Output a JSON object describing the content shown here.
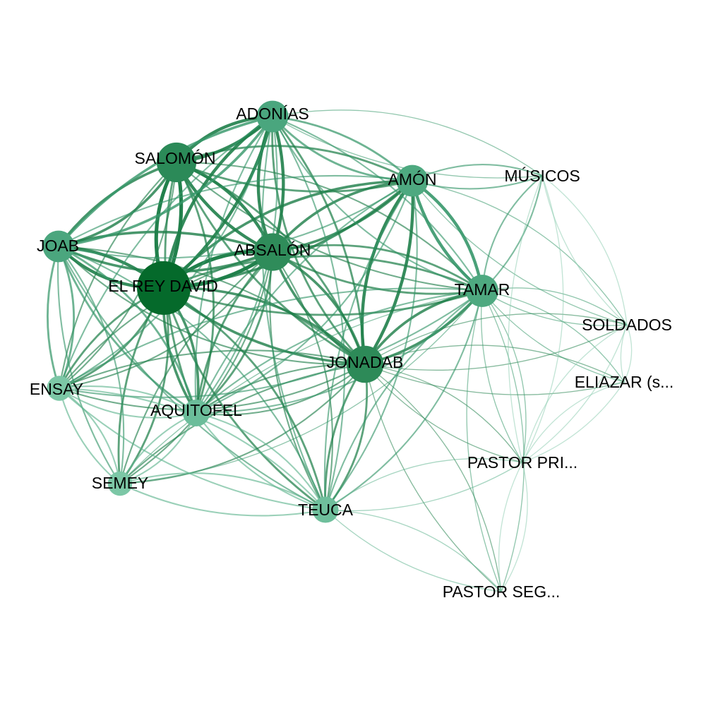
{
  "graph": {
    "nodes": [
      {
        "id": "david",
        "label": "EL REY DAVID",
        "weight": 1.0,
        "color": "#056a2b"
      },
      {
        "id": "salomon",
        "label": "SALOMÓN",
        "weight": 0.62,
        "color": "#2b8a58"
      },
      {
        "id": "absalon",
        "label": "ABSALÓN",
        "weight": 0.56,
        "color": "#2f8c5a"
      },
      {
        "id": "jonadab",
        "label": "JONADAB",
        "weight": 0.55,
        "color": "#2d8a58"
      },
      {
        "id": "adonias",
        "label": "ADONÍAS",
        "weight": 0.4,
        "color": "#4aa67e"
      },
      {
        "id": "amon",
        "label": "AMÓN",
        "weight": 0.4,
        "color": "#4ea980"
      },
      {
        "id": "tamar",
        "label": "TAMAR",
        "weight": 0.42,
        "color": "#4ea980"
      },
      {
        "id": "joab",
        "label": "JOAB",
        "weight": 0.4,
        "color": "#4ba67e"
      },
      {
        "id": "aquitofel",
        "label": "AQUITOFEL",
        "weight": 0.27,
        "color": "#6bbd9a"
      },
      {
        "id": "ensay",
        "label": "ENSAY",
        "weight": 0.22,
        "color": "#7cc7a6"
      },
      {
        "id": "semey",
        "label": "SEMEY",
        "weight": 0.2,
        "color": "#7cc7a6"
      },
      {
        "id": "teuca",
        "label": "TEUCA",
        "weight": 0.25,
        "color": "#6fbf9c"
      },
      {
        "id": "musicos",
        "label": "MÚSICOS",
        "weight": 0.0,
        "color": "#a9dcc5"
      },
      {
        "id": "soldados",
        "label": "SOLDADOS",
        "weight": 0.0,
        "color": "#a9dcc5"
      },
      {
        "id": "eliazar",
        "label": "ELIAZAR (s...",
        "weight": 0.0,
        "color": "#a9dcc5"
      },
      {
        "id": "pastor1",
        "label": "PASTOR PRI...",
        "weight": 0.0,
        "color": "#a9dcc5"
      },
      {
        "id": "pastor2",
        "label": "PASTOR SEG...",
        "weight": 0.0,
        "color": "#a9dcc5"
      }
    ],
    "edges": [
      {
        "source": "david",
        "target": "salomon",
        "weight": 6
      },
      {
        "source": "david",
        "target": "absalon",
        "weight": 6
      },
      {
        "source": "david",
        "target": "joab",
        "weight": 5
      },
      {
        "source": "david",
        "target": "adonias",
        "weight": 5
      },
      {
        "source": "david",
        "target": "jonadab",
        "weight": 4
      },
      {
        "source": "david",
        "target": "aquitofel",
        "weight": 4
      },
      {
        "source": "david",
        "target": "amon",
        "weight": 4
      },
      {
        "source": "david",
        "target": "tamar",
        "weight": 3
      },
      {
        "source": "david",
        "target": "ensay",
        "weight": 3
      },
      {
        "source": "david",
        "target": "semey",
        "weight": 3
      },
      {
        "source": "david",
        "target": "teuca",
        "weight": 3
      },
      {
        "source": "salomon",
        "target": "adonias",
        "weight": 5
      },
      {
        "source": "salomon",
        "target": "absalon",
        "weight": 5
      },
      {
        "source": "salomon",
        "target": "joab",
        "weight": 4
      },
      {
        "source": "salomon",
        "target": "amon",
        "weight": 3
      },
      {
        "source": "salomon",
        "target": "jonadab",
        "weight": 3
      },
      {
        "source": "salomon",
        "target": "aquitofel",
        "weight": 3
      },
      {
        "source": "salomon",
        "target": "tamar",
        "weight": 2
      },
      {
        "source": "salomon",
        "target": "ensay",
        "weight": 2
      },
      {
        "source": "absalon",
        "target": "adonias",
        "weight": 5
      },
      {
        "source": "absalon",
        "target": "joab",
        "weight": 4
      },
      {
        "source": "absalon",
        "target": "jonadab",
        "weight": 4
      },
      {
        "source": "absalon",
        "target": "amon",
        "weight": 4
      },
      {
        "source": "absalon",
        "target": "tamar",
        "weight": 3
      },
      {
        "source": "absalon",
        "target": "aquitofel",
        "weight": 3
      },
      {
        "source": "absalon",
        "target": "teuca",
        "weight": 2
      },
      {
        "source": "absalon",
        "target": "ensay",
        "weight": 2
      },
      {
        "source": "absalon",
        "target": "semey",
        "weight": 2
      },
      {
        "source": "jonadab",
        "target": "amon",
        "weight": 5
      },
      {
        "source": "jonadab",
        "target": "tamar",
        "weight": 4
      },
      {
        "source": "jonadab",
        "target": "adonias",
        "weight": 3
      },
      {
        "source": "jonadab",
        "target": "teuca",
        "weight": 3
      },
      {
        "source": "jonadab",
        "target": "aquitofel",
        "weight": 2
      },
      {
        "source": "jonadab",
        "target": "joab",
        "weight": 2
      },
      {
        "source": "jonadab",
        "target": "ensay",
        "weight": 2
      },
      {
        "source": "jonadab",
        "target": "semey",
        "weight": 2
      },
      {
        "source": "jonadab",
        "target": "pastor1",
        "weight": 1
      },
      {
        "source": "jonadab",
        "target": "pastor2",
        "weight": 1
      },
      {
        "source": "jonadab",
        "target": "eliazar",
        "weight": 1
      },
      {
        "source": "jonadab",
        "target": "soldados",
        "weight": 1
      },
      {
        "source": "amon",
        "target": "tamar",
        "weight": 5
      },
      {
        "source": "amon",
        "target": "adonias",
        "weight": 3
      },
      {
        "source": "amon",
        "target": "musicos",
        "weight": 2
      },
      {
        "source": "amon",
        "target": "joab",
        "weight": 2
      },
      {
        "source": "amon",
        "target": "teuca",
        "weight": 2
      },
      {
        "source": "amon",
        "target": "aquitofel",
        "weight": 2
      },
      {
        "source": "amon",
        "target": "soldados",
        "weight": 1
      },
      {
        "source": "tamar",
        "target": "musicos",
        "weight": 2
      },
      {
        "source": "tamar",
        "target": "soldados",
        "weight": 1
      },
      {
        "source": "tamar",
        "target": "eliazar",
        "weight": 1
      },
      {
        "source": "tamar",
        "target": "pastor1",
        "weight": 1
      },
      {
        "source": "tamar",
        "target": "pastor2",
        "weight": 1
      },
      {
        "source": "tamar",
        "target": "teuca",
        "weight": 2
      },
      {
        "source": "tamar",
        "target": "adonias",
        "weight": 2
      },
      {
        "source": "tamar",
        "target": "ensay",
        "weight": 2
      },
      {
        "source": "tamar",
        "target": "aquitofel",
        "weight": 2
      },
      {
        "source": "tamar",
        "target": "semey",
        "weight": 1
      },
      {
        "source": "adonias",
        "target": "joab",
        "weight": 4
      },
      {
        "source": "adonias",
        "target": "aquitofel",
        "weight": 2
      },
      {
        "source": "adonias",
        "target": "ensay",
        "weight": 2
      },
      {
        "source": "adonias",
        "target": "teuca",
        "weight": 2
      },
      {
        "source": "adonias",
        "target": "musicos",
        "weight": 1
      },
      {
        "source": "joab",
        "target": "ensay",
        "weight": 3
      },
      {
        "source": "joab",
        "target": "aquitofel",
        "weight": 3
      },
      {
        "source": "joab",
        "target": "semey",
        "weight": 2
      },
      {
        "source": "joab",
        "target": "teuca",
        "weight": 2
      },
      {
        "source": "aquitofel",
        "target": "ensay",
        "weight": 2
      },
      {
        "source": "aquitofel",
        "target": "semey",
        "weight": 2
      },
      {
        "source": "aquitofel",
        "target": "teuca",
        "weight": 2
      },
      {
        "source": "ensay",
        "target": "semey",
        "weight": 2
      },
      {
        "source": "ensay",
        "target": "teuca",
        "weight": 2
      },
      {
        "source": "semey",
        "target": "teuca",
        "weight": 2
      },
      {
        "source": "teuca",
        "target": "pastor1",
        "weight": 1
      },
      {
        "source": "teuca",
        "target": "pastor2",
        "weight": 1
      },
      {
        "source": "musicos",
        "target": "soldados",
        "weight": 1
      },
      {
        "source": "musicos",
        "target": "pastor1",
        "weight": 1
      },
      {
        "source": "soldados",
        "target": "eliazar",
        "weight": 1
      },
      {
        "source": "pastor1",
        "target": "pastor2",
        "weight": 1
      },
      {
        "source": "pastor1",
        "target": "eliazar",
        "weight": 1
      },
      {
        "source": "pastor1",
        "target": "soldados",
        "weight": 1
      }
    ]
  }
}
